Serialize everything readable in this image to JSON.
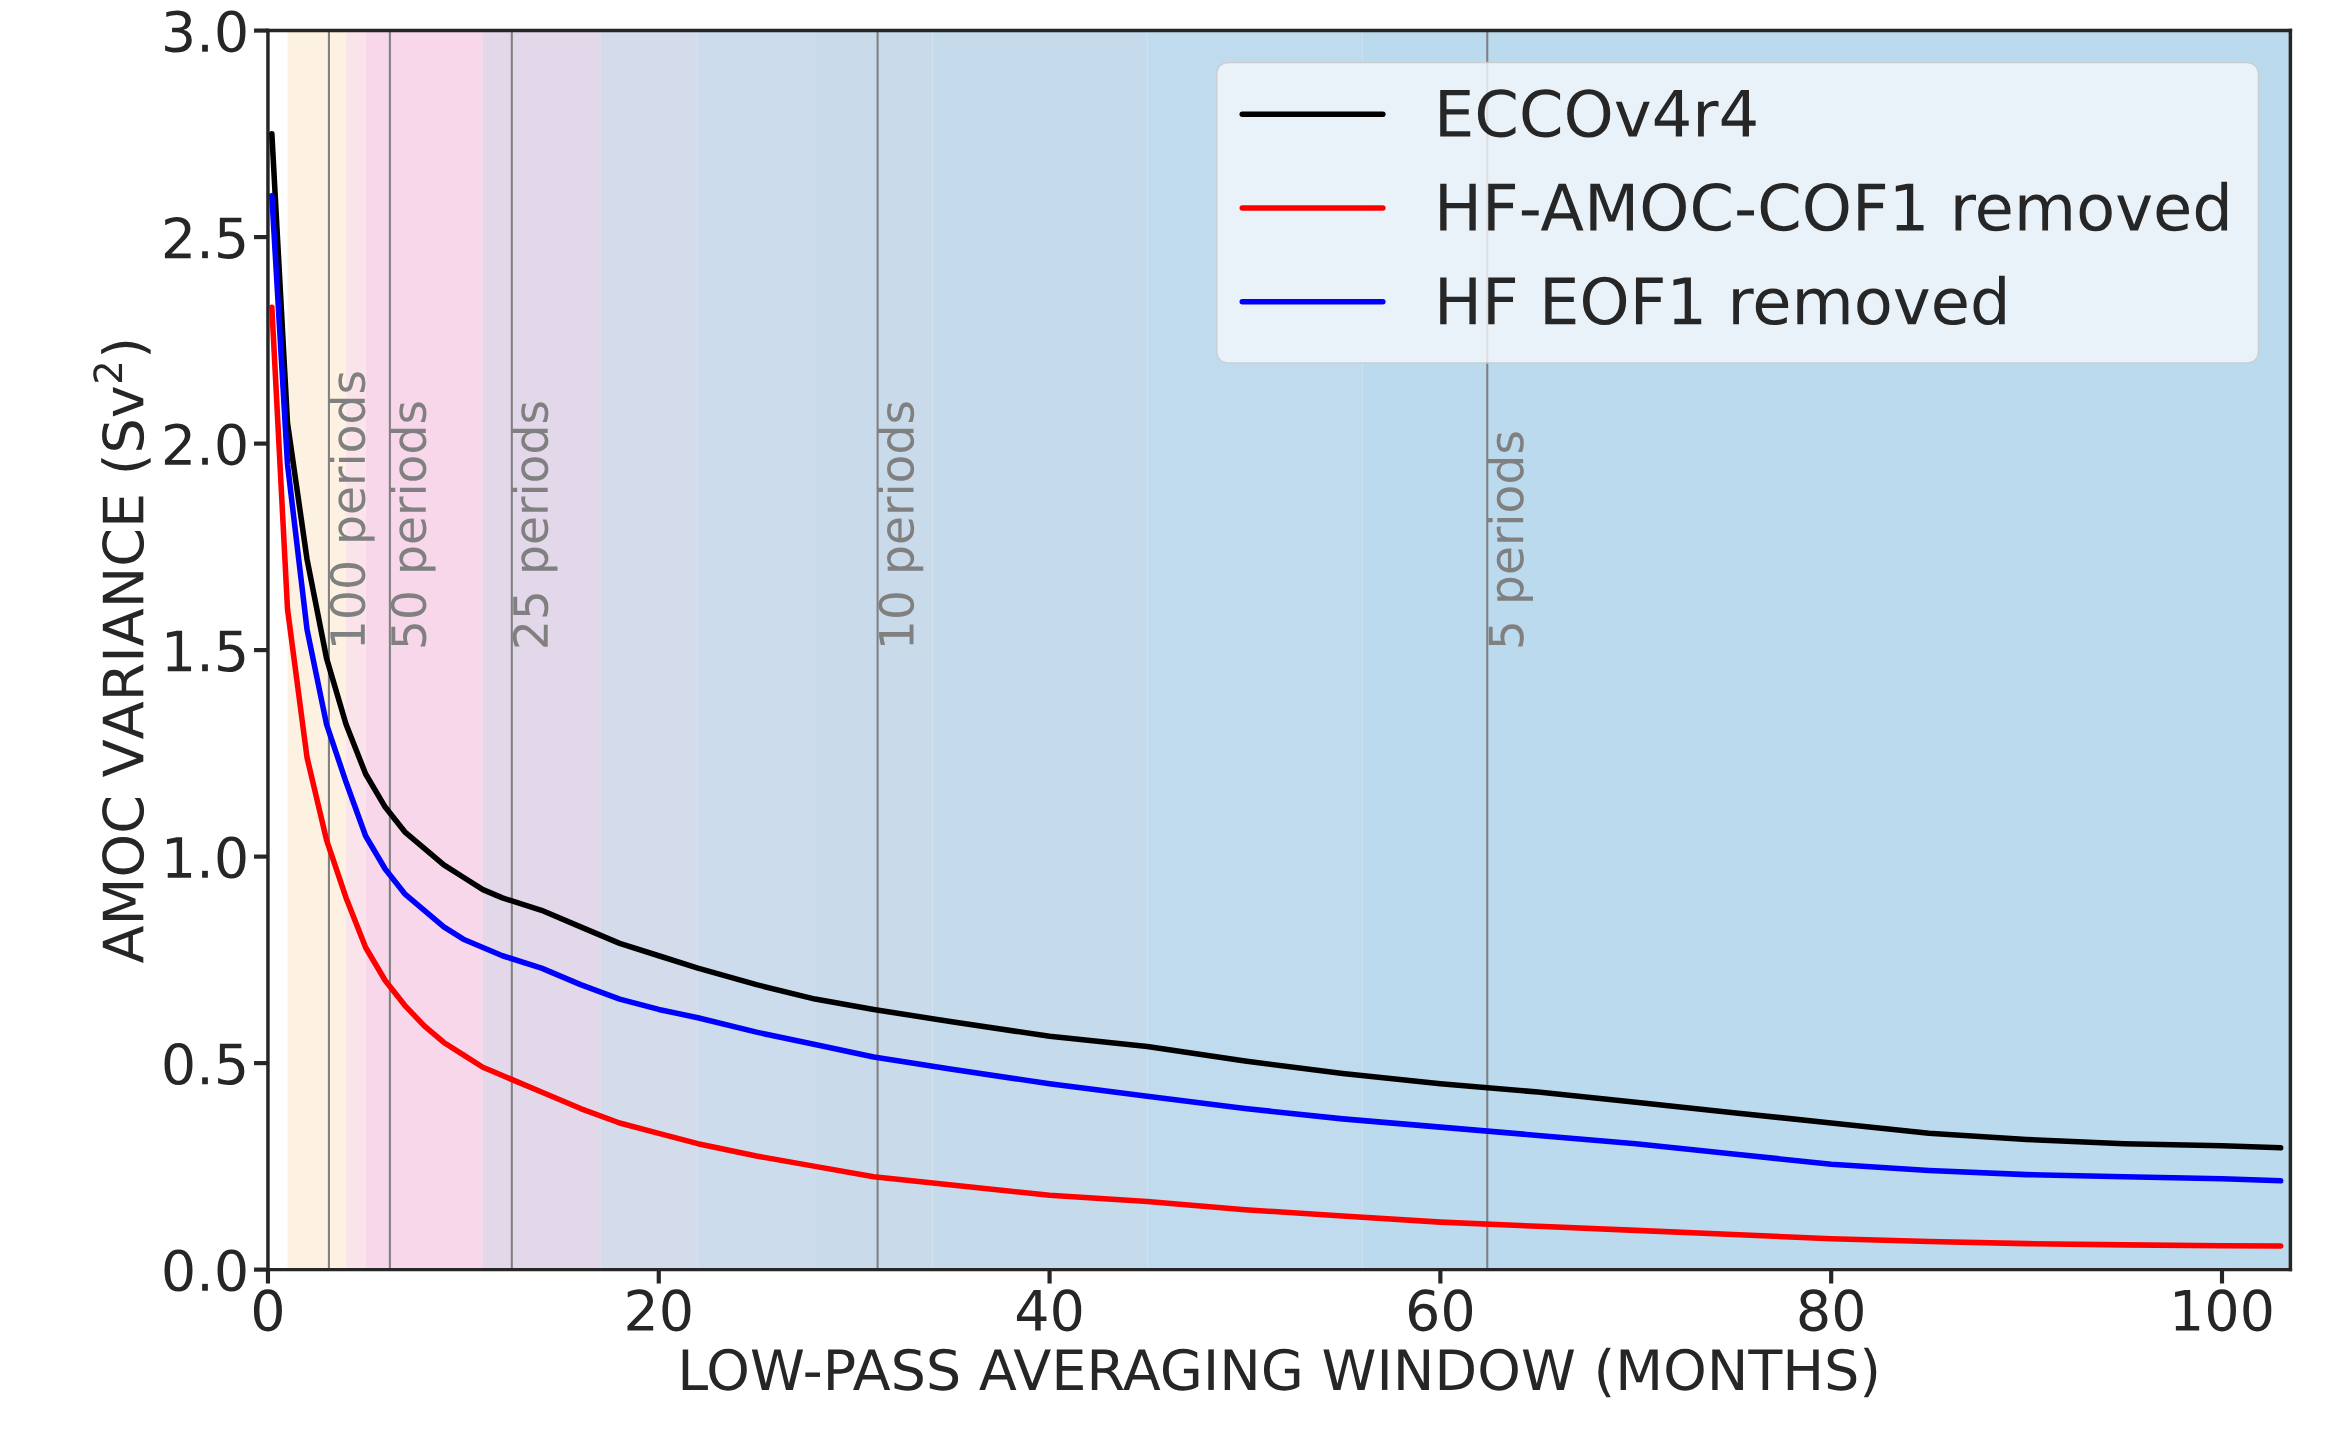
{
  "chart_data": {
    "type": "line",
    "xlabel": "LOW-PASS AVERAGING WINDOW (MONTHS)",
    "ylabel": "AMOC VARIANCE (Sv$^{2}$)",
    "xlim": [
      0,
      103.5
    ],
    "ylim": [
      0,
      3.0
    ],
    "xticks": [
      0,
      20,
      40,
      60,
      80,
      100
    ],
    "yticks": [
      {
        "value": 0,
        "label": "0.0"
      },
      0.5,
      {
        "value": 1,
        "label": "1.0"
      },
      1.5,
      {
        "value": 2,
        "label": "2.0"
      },
      2.5,
      {
        "value": 3,
        "label": "3.0"
      }
    ],
    "x": [
      0.2,
      1,
      2,
      3,
      4,
      5,
      6,
      7,
      8,
      9,
      10,
      11,
      12,
      14,
      16,
      18,
      20,
      22,
      25,
      28,
      31,
      35,
      40,
      45,
      50,
      55,
      60,
      65,
      70,
      75,
      80,
      85,
      90,
      95,
      100,
      103
    ],
    "series": [
      {
        "name": "ECCOv4r4",
        "color": "#000000",
        "values": [
          2.75,
          2.05,
          1.72,
          1.48,
          1.32,
          1.2,
          1.12,
          1.06,
          1.02,
          0.98,
          0.95,
          0.92,
          0.9,
          0.87,
          0.83,
          0.79,
          0.76,
          0.73,
          0.69,
          0.655,
          0.63,
          0.6,
          0.565,
          0.54,
          0.505,
          0.475,
          0.45,
          0.43,
          0.405,
          0.38,
          0.355,
          0.33,
          0.315,
          0.305,
          0.3,
          0.295
        ]
      },
      {
        "name": "HF-AMOC-COF1 removed",
        "color": "#ff0000",
        "values": [
          2.33,
          1.6,
          1.24,
          1.04,
          0.9,
          0.78,
          0.7,
          0.64,
          0.59,
          0.55,
          0.52,
          0.49,
          0.47,
          0.43,
          0.39,
          0.355,
          0.33,
          0.305,
          0.275,
          0.25,
          0.225,
          0.205,
          0.18,
          0.165,
          0.145,
          0.13,
          0.115,
          0.105,
          0.095,
          0.085,
          0.075,
          0.068,
          0.063,
          0.06,
          0.058,
          0.057
        ]
      },
      {
        "name": "HF EOF1 removed",
        "color": "#0000ff",
        "values": [
          2.6,
          1.95,
          1.55,
          1.32,
          1.18,
          1.05,
          0.97,
          0.91,
          0.87,
          0.83,
          0.8,
          0.78,
          0.76,
          0.73,
          0.69,
          0.655,
          0.63,
          0.61,
          0.575,
          0.545,
          0.515,
          0.485,
          0.45,
          0.42,
          0.39,
          0.365,
          0.345,
          0.325,
          0.305,
          0.28,
          0.255,
          0.24,
          0.23,
          0.225,
          0.22,
          0.215
        ]
      }
    ],
    "ref_lines": [
      {
        "axis": "x",
        "value": 3.12,
        "label": "100 periods",
        "color": "#808080"
      },
      {
        "axis": "x",
        "value": 6.24,
        "label": "50 periods",
        "color": "#808080"
      },
      {
        "axis": "x",
        "value": 12.48,
        "label": "25 periods",
        "color": "#808080"
      },
      {
        "axis": "x",
        "value": 31.2,
        "label": "10 periods",
        "color": "#808080"
      },
      {
        "axis": "x",
        "value": 62.4,
        "label": "5 periods",
        "color": "#808080"
      }
    ],
    "bands": [
      {
        "axis": "x",
        "from": 1,
        "to": 4,
        "color": "#fdf1e1"
      },
      {
        "axis": "x",
        "from": 4,
        "to": 5,
        "color": "#fbe3ec"
      },
      {
        "axis": "x",
        "from": 5,
        "to": 11,
        "color": "#f7d7e9"
      },
      {
        "axis": "x",
        "from": 11,
        "to": 17,
        "color": "#e2d8ea"
      },
      {
        "axis": "x",
        "from": 17,
        "to": 22,
        "color": "#d4dcec"
      },
      {
        "axis": "x",
        "from": 22,
        "to": 28,
        "color": "#cddcec"
      },
      {
        "axis": "x",
        "from": 28,
        "to": 34,
        "color": "#c9dbeb"
      },
      {
        "axis": "x",
        "from": 34,
        "to": 45,
        "color": "#c5daeb"
      },
      {
        "axis": "x",
        "from": 45,
        "to": 56,
        "color": "#c0dbed"
      },
      {
        "axis": "x",
        "from": 56,
        "to": 103.5,
        "color": "#bcdaee"
      }
    ],
    "grid": false,
    "legend": "top right",
    "line_style": "solid",
    "marker": "none"
  }
}
